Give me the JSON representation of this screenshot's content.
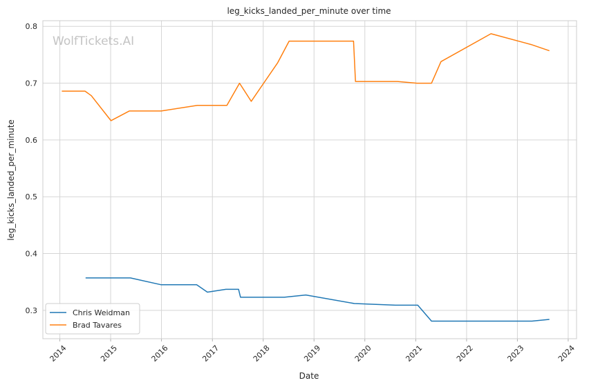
{
  "chart_data": {
    "type": "line",
    "title": "leg_kicks_landed_per_minute over time",
    "xlabel": "Date",
    "ylabel": "leg_kicks_landed_per_minute",
    "watermark": "WolfTickets.AI",
    "x_ticks": [
      "2014",
      "2015",
      "2016",
      "2017",
      "2018",
      "2019",
      "2020",
      "2021",
      "2022",
      "2023",
      "2024"
    ],
    "y_ticks": [
      "0.3",
      "0.4",
      "0.5",
      "0.6",
      "0.7",
      "0.8"
    ],
    "xlim": [
      "2013-09-01",
      "2024-03-01"
    ],
    "ylim": [
      0.25,
      0.81
    ],
    "grid": true,
    "legend_position": "lower-left",
    "series": [
      {
        "name": "Chris Weidman",
        "color": "#1f77b4",
        "points": [
          [
            "2014-07-05",
            0.357
          ],
          [
            "2015-05-23",
            0.357
          ],
          [
            "2015-12-30",
            0.345
          ],
          [
            "2016-09-10",
            0.345
          ],
          [
            "2016-11-26",
            0.332
          ],
          [
            "2017-04-08",
            0.337
          ],
          [
            "2017-07-08",
            0.337
          ],
          [
            "2017-07-22",
            0.323
          ],
          [
            "2018-06-01",
            0.323
          ],
          [
            "2018-11-03",
            0.327
          ],
          [
            "2019-10-18",
            0.312
          ],
          [
            "2020-08-08",
            0.309
          ],
          [
            "2021-01-15",
            0.309
          ],
          [
            "2021-04-24",
            0.281
          ],
          [
            "2023-04-15",
            0.281
          ],
          [
            "2023-08-19",
            0.284
          ]
        ]
      },
      {
        "name": "Brad Tavares",
        "color": "#ff7f0e",
        "points": [
          [
            "2014-01-15",
            0.686
          ],
          [
            "2014-07-01",
            0.686
          ],
          [
            "2014-08-15",
            0.678
          ],
          [
            "2015-01-03",
            0.634
          ],
          [
            "2015-05-15",
            0.651
          ],
          [
            "2015-12-30",
            0.651
          ],
          [
            "2016-09-15",
            0.661
          ],
          [
            "2017-04-15",
            0.661
          ],
          [
            "2017-07-15",
            0.7
          ],
          [
            "2017-10-07",
            0.668
          ],
          [
            "2018-04-15",
            0.736
          ],
          [
            "2018-07-06",
            0.774
          ],
          [
            "2019-10-12",
            0.774
          ],
          [
            "2019-10-26",
            0.703
          ],
          [
            "2020-08-22",
            0.703
          ],
          [
            "2021-01-10",
            0.7
          ],
          [
            "2021-04-24",
            0.7
          ],
          [
            "2021-07-01",
            0.738
          ],
          [
            "2022-06-25",
            0.787
          ],
          [
            "2023-04-10",
            0.768
          ],
          [
            "2023-08-19",
            0.757
          ]
        ]
      }
    ]
  }
}
